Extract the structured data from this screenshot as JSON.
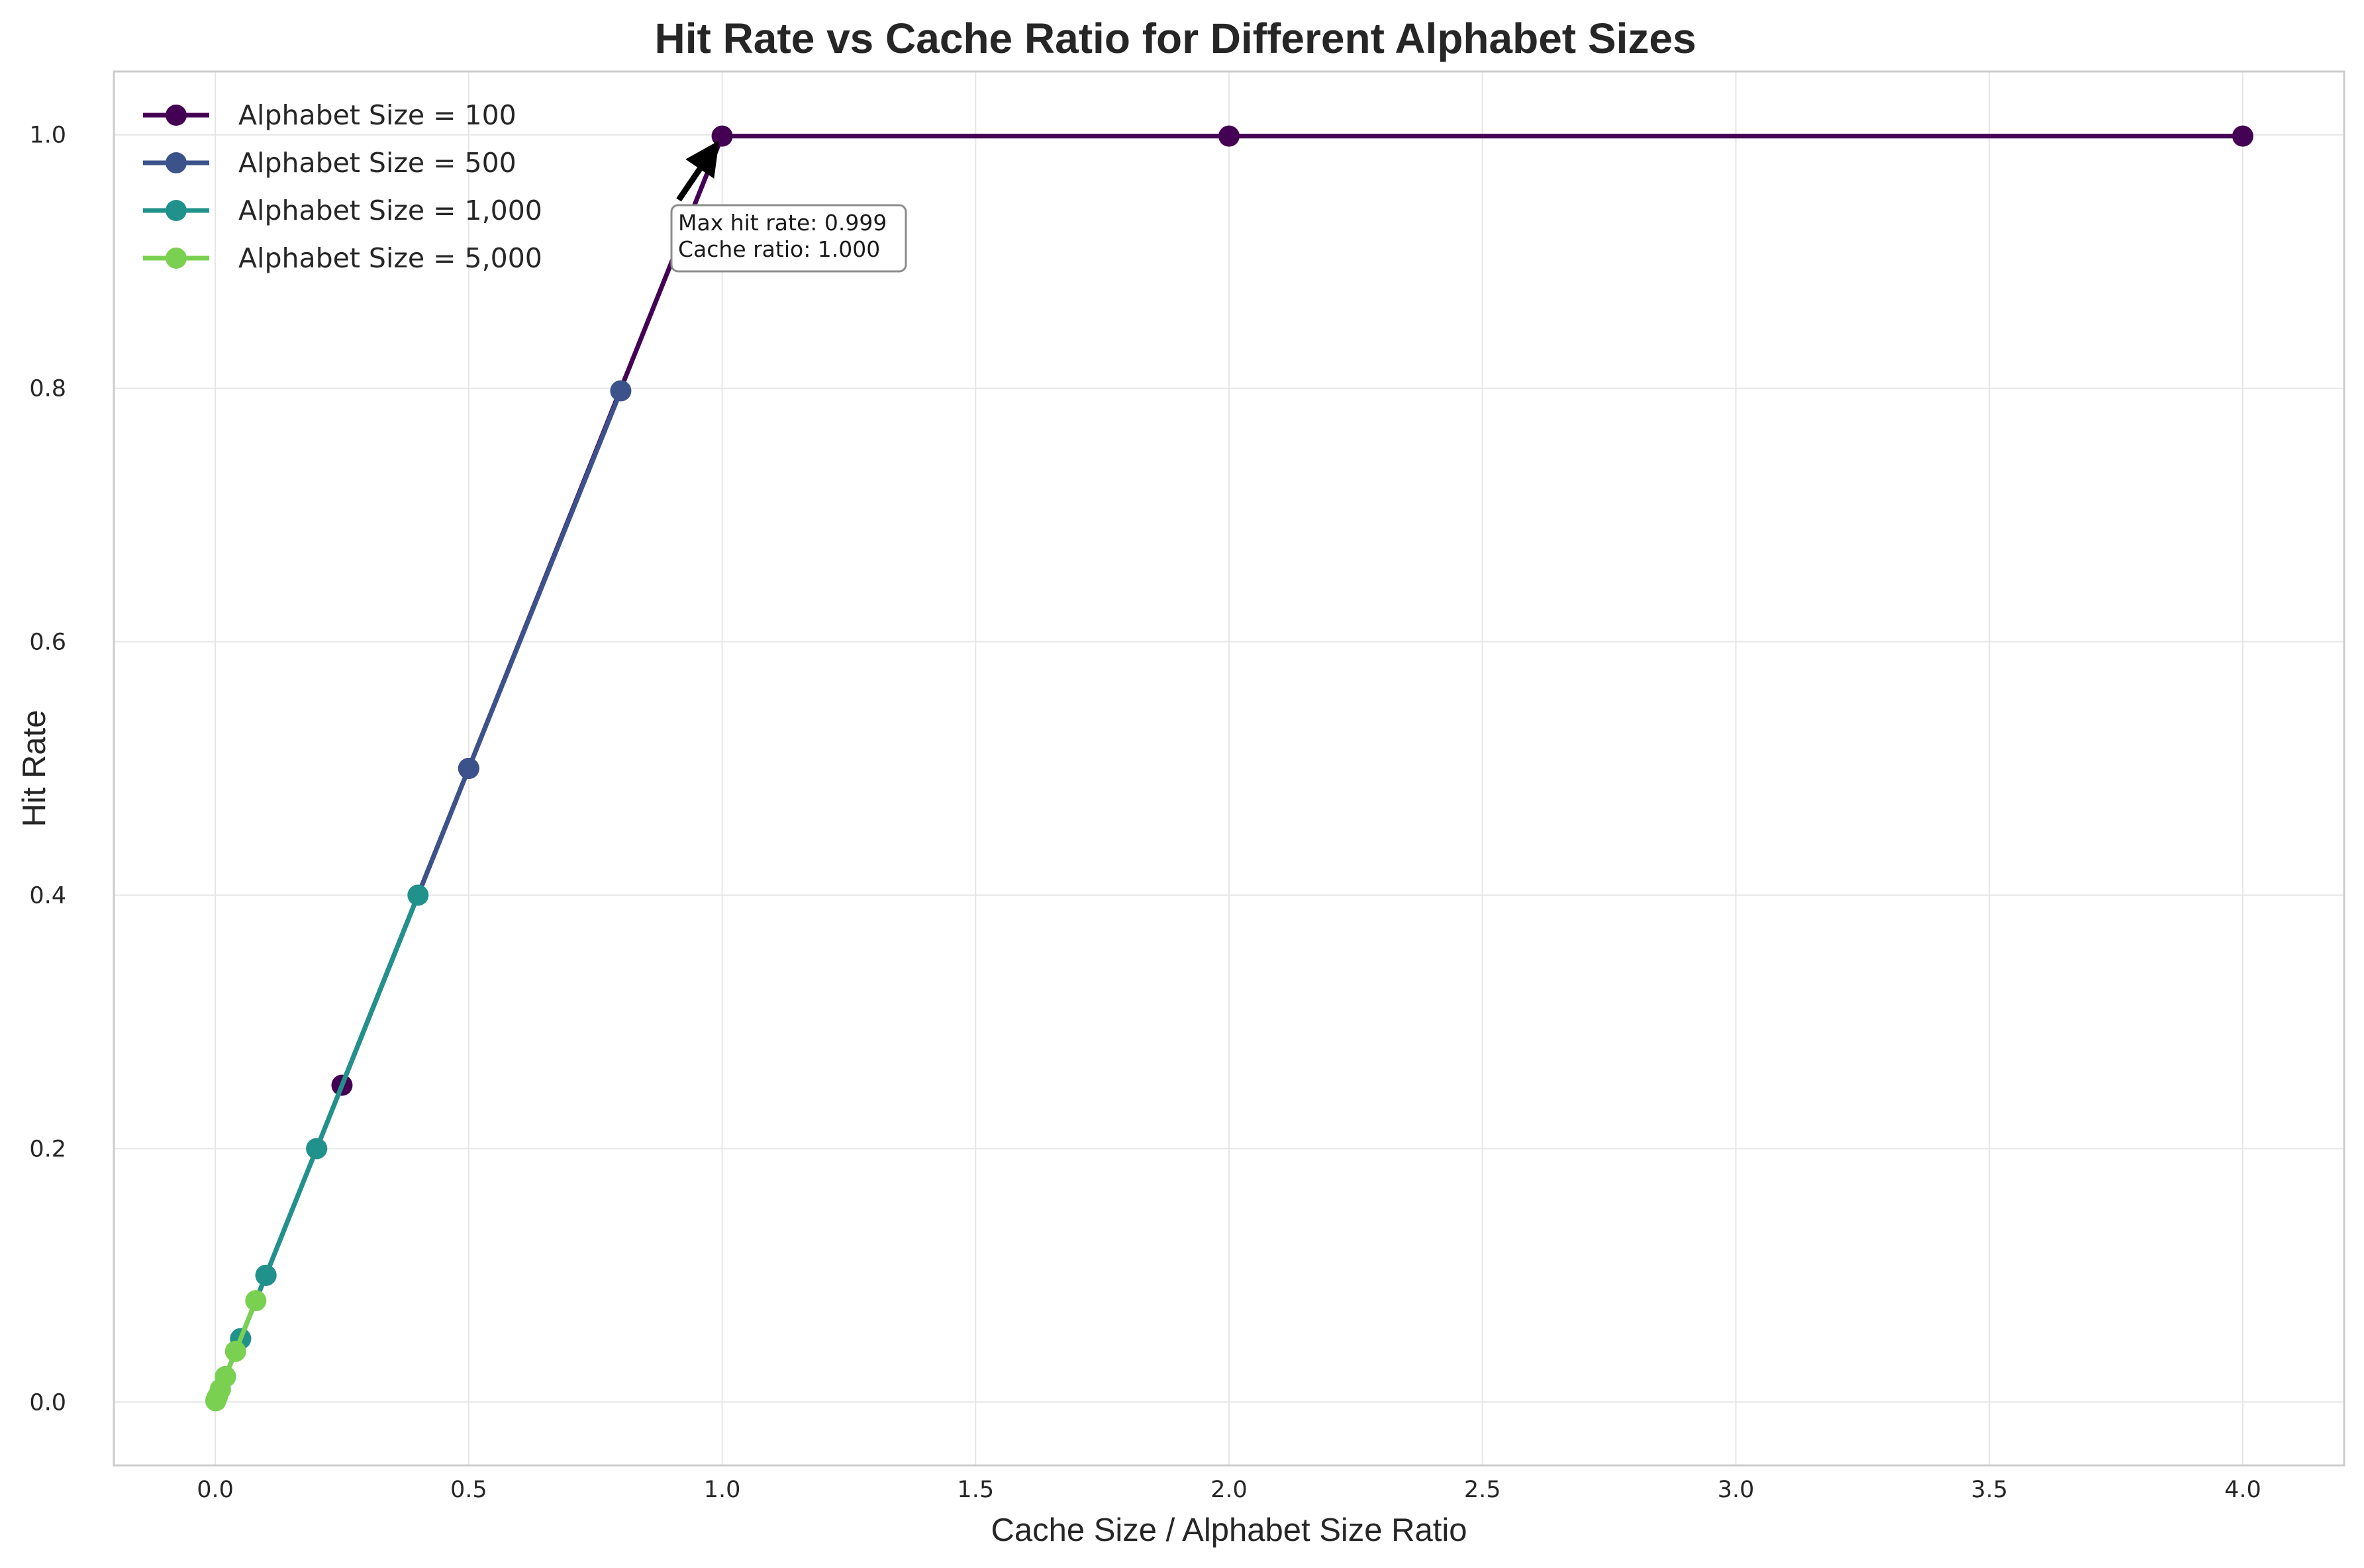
{
  "chart_data": {
    "type": "line",
    "title": "Hit Rate vs Cache Ratio for Different Alphabet Sizes",
    "xlabel": "Cache Size / Alphabet Size Ratio",
    "ylabel": "Hit Rate",
    "xlim": [
      -0.2,
      4.2
    ],
    "ylim": [
      -0.05,
      1.05
    ],
    "xticks": [
      0.0,
      0.5,
      1.0,
      1.5,
      2.0,
      2.5,
      3.0,
      3.5,
      4.0
    ],
    "xtick_labels": [
      "0.0",
      "0.5",
      "1.0",
      "1.5",
      "2.0",
      "2.5",
      "3.0",
      "3.5",
      "4.0"
    ],
    "yticks": [
      0.0,
      0.2,
      0.4,
      0.6,
      0.8,
      1.0
    ],
    "ytick_labels": [
      "0.0",
      "0.2",
      "0.4",
      "0.6",
      "0.8",
      "1.0"
    ],
    "grid": true,
    "legend_position": "top-left",
    "series": [
      {
        "name": "Alphabet Size = 100",
        "color": "#440154",
        "x": [
          0.25,
          0.5,
          1.0,
          2.0,
          4.0
        ],
        "y": [
          0.25,
          0.5,
          0.999,
          0.999,
          0.999
        ]
      },
      {
        "name": "Alphabet Size = 500",
        "color": "#3b528b",
        "x": [
          0.02,
          0.05,
          0.1,
          0.2,
          0.5,
          0.8
        ],
        "y": [
          0.02,
          0.05,
          0.1,
          0.2,
          0.5,
          0.798
        ]
      },
      {
        "name": "Alphabet Size = 1,000",
        "color": "#21918c",
        "x": [
          0.01,
          0.02,
          0.05,
          0.1,
          0.2,
          0.4
        ],
        "y": [
          0.01,
          0.02,
          0.05,
          0.1,
          0.2,
          0.4
        ]
      },
      {
        "name": "Alphabet Size = 5,000",
        "color": "#7ad151",
        "x": [
          0.001,
          0.002,
          0.004,
          0.01,
          0.02,
          0.04,
          0.08
        ],
        "y": [
          0.001,
          0.002,
          0.004,
          0.01,
          0.02,
          0.04,
          0.08
        ]
      }
    ],
    "annotation": {
      "lines": [
        "Max hit rate: 0.999",
        "Cache ratio: 1.000"
      ],
      "target": {
        "x": 1.0,
        "y": 0.999
      }
    }
  }
}
